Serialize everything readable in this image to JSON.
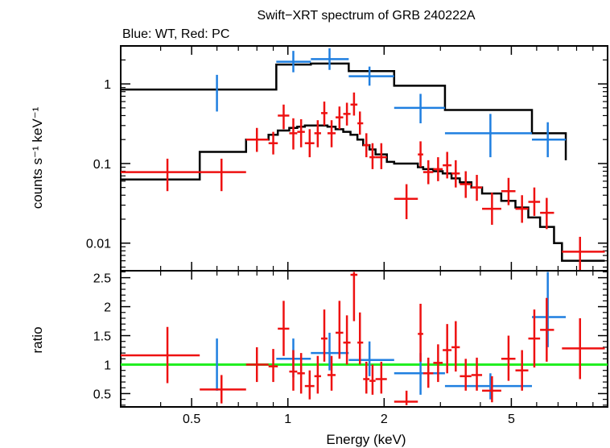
{
  "colors": {
    "wt": "#1f7fe0",
    "pc": "#ee1111",
    "model": "#000000",
    "unity": "#22ee22",
    "frame": "#000000"
  },
  "chart_data": [
    {
      "type": "scatter",
      "title": "Swift−XRT spectrum of GRB 240222A",
      "subtitle": "Blue: WT, Red: PC",
      "xlabel": "",
      "ylabel": "counts s⁻¹ keV⁻¹",
      "xscale": "log",
      "yscale": "log",
      "xlim": [
        0.3,
        10
      ],
      "ylim": [
        0.0045,
        3.0
      ],
      "yticks": [
        {
          "value": 0.01,
          "label": "0.01"
        },
        {
          "value": 0.1,
          "label": "0.1"
        },
        {
          "value": 1,
          "label": "1"
        }
      ],
      "series": [
        {
          "key": "wt",
          "points": [
            {
              "x": 0.6,
              "xlo": 0.6,
              "xhi": 0.6,
              "y": 0.8,
              "ylo": 0.45,
              "yhi": 1.3
            },
            {
              "x": 1.04,
              "xlo": 0.92,
              "xhi": 1.18,
              "y": 1.9,
              "ylo": 1.4,
              "yhi": 2.6
            },
            {
              "x": 1.35,
              "xlo": 1.18,
              "xhi": 1.55,
              "y": 2.05,
              "ylo": 1.5,
              "yhi": 2.8
            },
            {
              "x": 1.8,
              "xlo": 1.55,
              "xhi": 2.15,
              "y": 1.25,
              "ylo": 0.95,
              "yhi": 1.65
            },
            {
              "x": 2.6,
              "xlo": 2.15,
              "xhi": 3.1,
              "y": 0.5,
              "ylo": 0.32,
              "yhi": 0.75
            },
            {
              "x": 4.3,
              "xlo": 3.1,
              "xhi": 5.8,
              "y": 0.24,
              "ylo": 0.12,
              "yhi": 0.42
            },
            {
              "x": 6.5,
              "xlo": 5.8,
              "xhi": 7.4,
              "y": 0.2,
              "ylo": 0.12,
              "yhi": 0.33
            }
          ]
        },
        {
          "key": "pc",
          "points": [
            {
              "x": 0.42,
              "xlo": 0.3,
              "xhi": 0.53,
              "y": 0.078,
              "ylo": 0.045,
              "yhi": 0.115
            },
            {
              "x": 0.62,
              "xlo": 0.53,
              "xhi": 0.74,
              "y": 0.078,
              "ylo": 0.045,
              "yhi": 0.115
            },
            {
              "x": 0.8,
              "xlo": 0.74,
              "xhi": 0.87,
              "y": 0.2,
              "ylo": 0.14,
              "yhi": 0.28
            },
            {
              "x": 0.9,
              "xlo": 0.87,
              "xhi": 0.93,
              "y": 0.18,
              "ylo": 0.13,
              "yhi": 0.25
            },
            {
              "x": 0.97,
              "xlo": 0.93,
              "xhi": 1.01,
              "y": 0.4,
              "ylo": 0.27,
              "yhi": 0.55
            },
            {
              "x": 1.04,
              "xlo": 1.01,
              "xhi": 1.07,
              "y": 0.24,
              "ylo": 0.15,
              "yhi": 0.37
            },
            {
              "x": 1.1,
              "xlo": 1.07,
              "xhi": 1.13,
              "y": 0.25,
              "ylo": 0.16,
              "yhi": 0.36
            },
            {
              "x": 1.17,
              "xlo": 1.13,
              "xhi": 1.21,
              "y": 0.18,
              "ylo": 0.12,
              "yhi": 0.27
            },
            {
              "x": 1.24,
              "xlo": 1.21,
              "xhi": 1.27,
              "y": 0.24,
              "ylo": 0.16,
              "yhi": 0.35
            },
            {
              "x": 1.3,
              "xlo": 1.27,
              "xhi": 1.33,
              "y": 0.43,
              "ylo": 0.3,
              "yhi": 0.6
            },
            {
              "x": 1.37,
              "xlo": 1.33,
              "xhi": 1.41,
              "y": 0.24,
              "ylo": 0.16,
              "yhi": 0.35
            },
            {
              "x": 1.45,
              "xlo": 1.41,
              "xhi": 1.49,
              "y": 0.38,
              "ylo": 0.27,
              "yhi": 0.52
            },
            {
              "x": 1.53,
              "xlo": 1.49,
              "xhi": 1.57,
              "y": 0.42,
              "ylo": 0.3,
              "yhi": 0.58
            },
            {
              "x": 1.61,
              "xlo": 1.57,
              "xhi": 1.65,
              "y": 0.55,
              "ylo": 0.4,
              "yhi": 0.78
            },
            {
              "x": 1.68,
              "xlo": 1.65,
              "xhi": 1.72,
              "y": 0.32,
              "ylo": 0.23,
              "yhi": 0.45
            },
            {
              "x": 1.76,
              "xlo": 1.72,
              "xhi": 1.8,
              "y": 0.17,
              "ylo": 0.12,
              "yhi": 0.24
            },
            {
              "x": 1.84,
              "xlo": 1.8,
              "xhi": 1.88,
              "y": 0.12,
              "ylo": 0.085,
              "yhi": 0.18
            },
            {
              "x": 1.96,
              "xlo": 1.88,
              "xhi": 2.04,
              "y": 0.12,
              "ylo": 0.085,
              "yhi": 0.18
            },
            {
              "x": 2.35,
              "xlo": 2.15,
              "xhi": 2.55,
              "y": 0.036,
              "ylo": 0.02,
              "yhi": 0.055
            },
            {
              "x": 2.6,
              "xlo": 2.55,
              "xhi": 2.65,
              "y": 0.13,
              "ylo": 0.09,
              "yhi": 0.19
            },
            {
              "x": 2.75,
              "xlo": 2.65,
              "xhi": 2.85,
              "y": 0.078,
              "ylo": 0.055,
              "yhi": 0.11
            },
            {
              "x": 2.95,
              "xlo": 2.85,
              "xhi": 3.05,
              "y": 0.085,
              "ylo": 0.06,
              "yhi": 0.12
            },
            {
              "x": 3.15,
              "xlo": 3.05,
              "xhi": 3.25,
              "y": 0.095,
              "ylo": 0.065,
              "yhi": 0.14
            },
            {
              "x": 3.35,
              "xlo": 3.25,
              "xhi": 3.45,
              "y": 0.075,
              "ylo": 0.05,
              "yhi": 0.11
            },
            {
              "x": 3.6,
              "xlo": 3.45,
              "xhi": 3.75,
              "y": 0.055,
              "ylo": 0.037,
              "yhi": 0.08
            },
            {
              "x": 3.9,
              "xlo": 3.75,
              "xhi": 4.05,
              "y": 0.05,
              "ylo": 0.034,
              "yhi": 0.072
            },
            {
              "x": 4.35,
              "xlo": 4.05,
              "xhi": 4.65,
              "y": 0.027,
              "ylo": 0.017,
              "yhi": 0.043
            },
            {
              "x": 4.9,
              "xlo": 4.65,
              "xhi": 5.15,
              "y": 0.045,
              "ylo": 0.03,
              "yhi": 0.066
            },
            {
              "x": 5.4,
              "xlo": 5.15,
              "xhi": 5.65,
              "y": 0.027,
              "ylo": 0.018,
              "yhi": 0.04
            },
            {
              "x": 5.9,
              "xlo": 5.65,
              "xhi": 6.15,
              "y": 0.033,
              "ylo": 0.022,
              "yhi": 0.05
            },
            {
              "x": 6.45,
              "xlo": 6.15,
              "xhi": 6.8,
              "y": 0.024,
              "ylo": 0.015,
              "yhi": 0.037
            },
            {
              "x": 8.2,
              "xlo": 7.2,
              "xhi": 9.8,
              "y": 0.0078,
              "ylo": 0.0045,
              "yhi": 0.012
            }
          ]
        },
        {
          "key": "wt_model",
          "type": "step",
          "edges": [
            0.3,
            0.92,
            1.18,
            1.55,
            2.15,
            3.1,
            5.8,
            7.4
          ],
          "values": [
            0.85,
            1.75,
            1.8,
            1.45,
            0.95,
            0.47,
            0.24,
            0.11
          ]
        },
        {
          "key": "pc_model",
          "type": "step",
          "edges": [
            0.3,
            0.53,
            0.74,
            0.87,
            0.93,
            1.01,
            1.07,
            1.13,
            1.21,
            1.27,
            1.33,
            1.41,
            1.49,
            1.57,
            1.65,
            1.72,
            1.8,
            1.88,
            2.04,
            2.15,
            2.55,
            2.65,
            2.85,
            3.05,
            3.25,
            3.45,
            3.75,
            4.05,
            4.65,
            5.15,
            5.65,
            6.15,
            6.8,
            7.2,
            9.8
          ],
          "values": [
            0.063,
            0.14,
            0.2,
            0.23,
            0.26,
            0.28,
            0.29,
            0.3,
            0.3,
            0.3,
            0.29,
            0.27,
            0.25,
            0.23,
            0.2,
            0.17,
            0.15,
            0.13,
            0.105,
            0.1,
            0.09,
            0.085,
            0.08,
            0.075,
            0.065,
            0.058,
            0.05,
            0.042,
            0.034,
            0.028,
            0.021,
            0.016,
            0.01,
            0.006
          ]
        }
      ]
    },
    {
      "type": "scatter",
      "xlabel": "Energy (keV)",
      "ylabel": "ratio",
      "xscale": "log",
      "xlim": [
        0.3,
        10
      ],
      "ylim": [
        0.27,
        2.62
      ],
      "xticks": [
        {
          "value": 0.5,
          "label": "0.5"
        },
        {
          "value": 1,
          "label": "1"
        },
        {
          "value": 2,
          "label": "2"
        },
        {
          "value": 5,
          "label": "5"
        }
      ],
      "yticks": [
        {
          "value": 0.5,
          "label": "0.5"
        },
        {
          "value": 1,
          "label": "1"
        },
        {
          "value": 1.5,
          "label": "1.5"
        },
        {
          "value": 2,
          "label": "2"
        },
        {
          "value": 2.5,
          "label": "2.5"
        }
      ],
      "reference_line": 1,
      "series": [
        {
          "key": "wt",
          "points": [
            {
              "x": 0.6,
              "xlo": 0.6,
              "xhi": 0.6,
              "y": 0.95,
              "ylo": 0.55,
              "yhi": 1.45
            },
            {
              "x": 1.04,
              "xlo": 0.92,
              "xhi": 1.18,
              "y": 1.1,
              "ylo": 0.78,
              "yhi": 1.45
            },
            {
              "x": 1.35,
              "xlo": 1.18,
              "xhi": 1.55,
              "y": 1.2,
              "ylo": 0.9,
              "yhi": 1.55
            },
            {
              "x": 1.8,
              "xlo": 1.55,
              "xhi": 2.15,
              "y": 1.08,
              "ylo": 0.8,
              "yhi": 1.4
            },
            {
              "x": 2.6,
              "xlo": 2.15,
              "xhi": 3.1,
              "y": 0.85,
              "ylo": 0.48,
              "yhi": 1.2
            },
            {
              "x": 4.3,
              "xlo": 3.1,
              "xhi": 5.8,
              "y": 0.63,
              "ylo": 0.4,
              "yhi": 0.85
            },
            {
              "x": 6.5,
              "xlo": 5.8,
              "xhi": 7.4,
              "y": 1.82,
              "ylo": 1.3,
              "yhi": 2.6
            }
          ]
        },
        {
          "key": "pc",
          "points": [
            {
              "x": 0.42,
              "xlo": 0.3,
              "xhi": 0.53,
              "y": 1.16,
              "ylo": 0.68,
              "yhi": 1.65
            },
            {
              "x": 0.62,
              "xlo": 0.53,
              "xhi": 0.74,
              "y": 0.57,
              "ylo": 0.33,
              "yhi": 0.82
            },
            {
              "x": 0.8,
              "xlo": 0.74,
              "xhi": 0.87,
              "y": 1.0,
              "ylo": 0.7,
              "yhi": 1.3
            },
            {
              "x": 0.9,
              "xlo": 0.87,
              "xhi": 0.93,
              "y": 0.97,
              "ylo": 0.7,
              "yhi": 1.27
            },
            {
              "x": 0.97,
              "xlo": 0.93,
              "xhi": 1.01,
              "y": 1.62,
              "ylo": 1.15,
              "yhi": 2.1
            },
            {
              "x": 1.04,
              "xlo": 1.01,
              "xhi": 1.07,
              "y": 0.88,
              "ylo": 0.55,
              "yhi": 1.25
            },
            {
              "x": 1.1,
              "xlo": 1.07,
              "xhi": 1.13,
              "y": 0.85,
              "ylo": 0.5,
              "yhi": 1.2
            },
            {
              "x": 1.17,
              "xlo": 1.13,
              "xhi": 1.21,
              "y": 0.63,
              "ylo": 0.4,
              "yhi": 0.9
            },
            {
              "x": 1.24,
              "xlo": 1.21,
              "xhi": 1.27,
              "y": 0.8,
              "ylo": 0.5,
              "yhi": 1.15
            },
            {
              "x": 1.3,
              "xlo": 1.27,
              "xhi": 1.33,
              "y": 1.45,
              "ylo": 1.05,
              "yhi": 1.95
            },
            {
              "x": 1.37,
              "xlo": 1.33,
              "xhi": 1.41,
              "y": 0.82,
              "ylo": 0.55,
              "yhi": 1.15
            },
            {
              "x": 1.45,
              "xlo": 1.41,
              "xhi": 1.49,
              "y": 1.55,
              "ylo": 1.1,
              "yhi": 2.1
            },
            {
              "x": 1.53,
              "xlo": 1.49,
              "xhi": 1.57,
              "y": 1.38,
              "ylo": 1.0,
              "yhi": 1.85
            },
            {
              "x": 1.61,
              "xlo": 1.57,
              "xhi": 1.65,
              "y": 2.55,
              "ylo": 1.75,
              "yhi": 2.6
            },
            {
              "x": 1.68,
              "xlo": 1.65,
              "xhi": 1.72,
              "y": 1.38,
              "ylo": 1.0,
              "yhi": 1.9
            },
            {
              "x": 1.76,
              "xlo": 1.72,
              "xhi": 1.8,
              "y": 0.75,
              "ylo": 0.5,
              "yhi": 1.05
            },
            {
              "x": 1.84,
              "xlo": 1.8,
              "xhi": 1.88,
              "y": 0.72,
              "ylo": 0.48,
              "yhi": 1.0
            },
            {
              "x": 1.96,
              "xlo": 1.88,
              "xhi": 2.04,
              "y": 0.75,
              "ylo": 0.5,
              "yhi": 1.05
            },
            {
              "x": 2.35,
              "xlo": 2.15,
              "xhi": 2.55,
              "y": 0.36,
              "ylo": 0.3,
              "yhi": 0.55
            },
            {
              "x": 2.6,
              "xlo": 2.55,
              "xhi": 2.65,
              "y": 1.53,
              "ylo": 1.05,
              "yhi": 2.05
            },
            {
              "x": 2.75,
              "xlo": 2.65,
              "xhi": 2.85,
              "y": 0.85,
              "ylo": 0.6,
              "yhi": 1.12
            },
            {
              "x": 2.95,
              "xlo": 2.85,
              "xhi": 3.05,
              "y": 1.03,
              "ylo": 0.7,
              "yhi": 1.35
            },
            {
              "x": 3.15,
              "xlo": 3.05,
              "xhi": 3.25,
              "y": 1.25,
              "ylo": 0.85,
              "yhi": 1.7
            },
            {
              "x": 3.35,
              "xlo": 3.25,
              "xhi": 3.45,
              "y": 1.3,
              "ylo": 0.88,
              "yhi": 1.75
            },
            {
              "x": 3.6,
              "xlo": 3.45,
              "xhi": 3.75,
              "y": 0.8,
              "ylo": 0.55,
              "yhi": 1.1
            },
            {
              "x": 3.9,
              "xlo": 3.75,
              "xhi": 4.05,
              "y": 0.82,
              "ylo": 0.55,
              "yhi": 1.12
            },
            {
              "x": 4.35,
              "xlo": 4.05,
              "xhi": 4.65,
              "y": 0.55,
              "ylo": 0.35,
              "yhi": 0.8
            },
            {
              "x": 4.9,
              "xlo": 4.65,
              "xhi": 5.15,
              "y": 1.1,
              "ylo": 0.72,
              "yhi": 1.5
            },
            {
              "x": 5.4,
              "xlo": 5.15,
              "xhi": 5.65,
              "y": 0.9,
              "ylo": 0.55,
              "yhi": 1.25
            },
            {
              "x": 5.9,
              "xlo": 5.65,
              "xhi": 6.15,
              "y": 1.45,
              "ylo": 0.95,
              "yhi": 1.95
            },
            {
              "x": 6.45,
              "xlo": 6.15,
              "xhi": 6.8,
              "y": 1.6,
              "ylo": 1.05,
              "yhi": 2.15
            },
            {
              "x": 8.2,
              "xlo": 7.2,
              "xhi": 9.8,
              "y": 1.28,
              "ylo": 0.75,
              "yhi": 1.8
            }
          ]
        }
      ]
    }
  ]
}
